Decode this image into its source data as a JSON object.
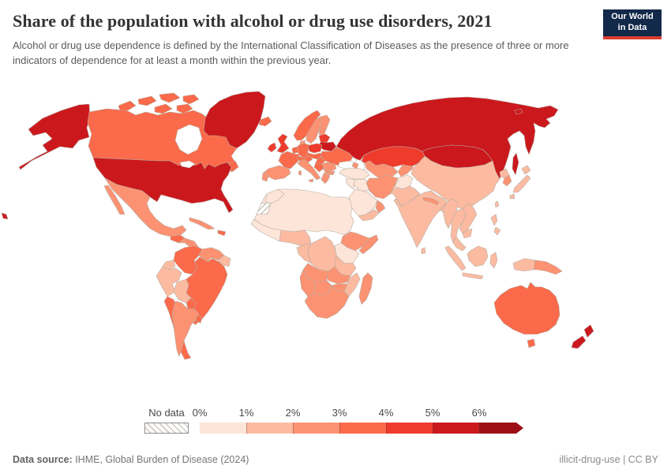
{
  "header": {
    "title": "Share of the population with alcohol or drug use disorders, 2021",
    "subtitle": "Alcohol or drug use dependence is defined by the International Classification of Diseases as the presence of three or more indicators of dependence for at least a month within the previous year.",
    "logo": {
      "line1": "Our World",
      "line2": "in Data",
      "bg_color": "#12294a",
      "accent_color": "#dc3d31"
    }
  },
  "legend": {
    "no_data_label": "No data",
    "tick_labels": [
      "0%",
      "1%",
      "2%",
      "3%",
      "4%",
      "5%",
      "6%"
    ]
  },
  "footer": {
    "source_label": "Data source:",
    "source_value": " IHME, Global Burden of Disease (2024)",
    "right_note": "illicit-drug-use | CC BY"
  },
  "chart_data": {
    "type": "choropleth_map",
    "title": "Share of the population with alcohol or drug use disorders, 2021",
    "year": "2021",
    "unit": "% of population",
    "legend_position": "bottom",
    "bin_labels": [
      "0-1%",
      "1-2%",
      "2-3%",
      "3-4%",
      "4-5%",
      "5-6%",
      "6%+"
    ],
    "bin_colors": [
      "#fee5d9",
      "#fcbba1",
      "#fc9272",
      "#fb6a4a",
      "#ef3b2c",
      "#cb181d",
      "#9e0f15"
    ],
    "no_data_style": "gray diagonal hatching",
    "region_bins": {
      "united_states": 5,
      "alaska": 5,
      "hawaii": 5,
      "canada": 3,
      "greenland": 5,
      "newfoundland": 3,
      "mexico": 2,
      "guatemala": 3,
      "nicaragua": 2,
      "costa_rica_panama": 3,
      "cuba": 2,
      "hispaniola": 3,
      "colombia": 3,
      "venezuela": 2,
      "guyanas": 1,
      "ecuador": 1,
      "peru": 1,
      "bolivia": 1,
      "brazil": 3,
      "paraguay": 3,
      "chile": 3,
      "argentina": 2,
      "uruguay": 3,
      "iceland": 3,
      "norway": 3,
      "sweden": 2,
      "finland": 2,
      "denmark": 2,
      "united_kingdom": 4,
      "ireland": 4,
      "baltics": 4,
      "belarus": 5,
      "benelux": 3,
      "germany": 3,
      "poland": 4,
      "czech_slovakia": 3,
      "france": 3,
      "spain": 2,
      "portugal": 2,
      "italy": 2,
      "switzerland_austria": 3,
      "hungary": 3,
      "ukraine": 3,
      "romania": 2,
      "bulgaria": 2,
      "balkans": 3,
      "greece": 2,
      "turkey": 0,
      "russia": 5,
      "kazakhstan": 4,
      "mongolia": 5,
      "china": 1,
      "north_korea": 1,
      "south_korea": 2,
      "japan": 1,
      "taiwan": 1,
      "central_asia": 2,
      "kyrgyz_tajik": 2,
      "caucasus": 2,
      "iran": 2,
      "afghanistan": 0,
      "pakistan": 1,
      "iraq": 0,
      "syria_jordan": 0,
      "saudi_arabia": 0,
      "yemen": 1,
      "oman": 2,
      "india": 1,
      "sri_lanka": 1,
      "nepal": 2,
      "bangladesh": 1,
      "myanmar": 1,
      "thailand": 1,
      "laos_vietnam": 1,
      "cambodia": 1,
      "malaysia": 1,
      "indonesia": 1,
      "philippines": 1,
      "new_guinea_west": 1,
      "papua_new_guinea": 2,
      "australia": 3,
      "new_zealand": 5,
      "morocco": 0,
      "western_sahara": -1,
      "north_africa_sahel": 0,
      "west_africa": 0,
      "nigeria_ghana": 1,
      "ethiopia": 2,
      "somalia": 2,
      "kenya_uganda": 0,
      "tanzania": 1,
      "drc": 1,
      "congo_gabon": 1,
      "angola": 2,
      "zambia": 2,
      "mozambique": 1,
      "zimbabwe": 2,
      "namibia": 2,
      "botswana": 2,
      "south_africa": 2,
      "madagascar": 2
    }
  }
}
